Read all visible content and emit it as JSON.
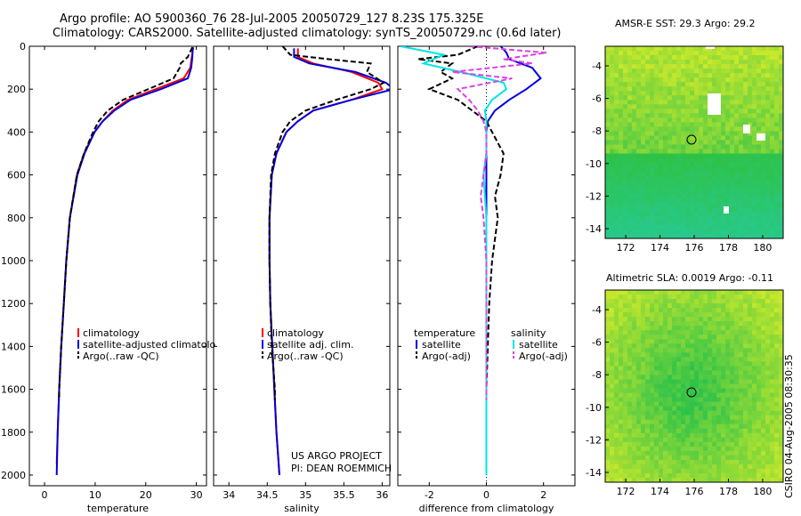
{
  "header": {
    "line1": "Argo profile: AO 5900360_76 28-Jul-2005 20050729_127 8.23S 175.325E",
    "line2": "Climatology: CARS2000. Satellite-adjusted climatology: synTS_20050729.nc (0.6d later)"
  },
  "credit": "CSIRO 04-Aug-2005 08:30:35",
  "maps": {
    "sst_title": "AMSR-E SST: 29.3 Argo: 29.2",
    "sla_title": "Altimetric SLA: 0.0019 Argo: -0.11",
    "x_ticks": [
      "172",
      "174",
      "176",
      "178",
      "180"
    ],
    "y_ticks": [
      "-4",
      "-6",
      "-8",
      "-10",
      "-12",
      "-14"
    ],
    "sst_y_ticks": [
      "-4",
      "-6",
      "-8",
      "-10",
      "-12",
      "-14"
    ],
    "colors": {
      "ocean_green": "#2ec24a",
      "warm": "#c8e82c",
      "cool": "#27c98e",
      "land": "#ffffff"
    }
  },
  "chart_data": [
    {
      "type": "line",
      "panel": "temperature",
      "xlabel": "temperature",
      "ylabel": "",
      "y_inverted": true,
      "xlim": [
        -3,
        32
      ],
      "ylim": [
        0,
        2050
      ],
      "x_ticks": [
        0,
        10,
        20,
        30
      ],
      "y_ticks": [
        0,
        200,
        400,
        600,
        800,
        1000,
        1200,
        1400,
        1600,
        1800,
        2000
      ],
      "legend": [
        "climatology",
        "satellite-adjusted climatolo",
        "Argo(..raw -QC)"
      ],
      "series": [
        {
          "name": "climatology",
          "color": "#ff0000",
          "dash": "",
          "depth": [
            5,
            50,
            100,
            150,
            200,
            250,
            300,
            350,
            400,
            500,
            600,
            800,
            1000,
            1200,
            1400,
            1600,
            1800,
            1950
          ],
          "values": [
            29.4,
            29.1,
            28.8,
            27.5,
            22,
            16.5,
            13.5,
            11.5,
            9.9,
            7.8,
            6.4,
            5.0,
            4.3,
            3.8,
            3.3,
            2.9,
            2.6,
            2.4
          ]
        },
        {
          "name": "satellite-adjusted climatolo",
          "color": "#0000dd",
          "dash": "",
          "depth": [
            5,
            50,
            100,
            150,
            200,
            250,
            300,
            350,
            400,
            500,
            600,
            800,
            1000,
            1200,
            1400,
            1600,
            1800,
            2000
          ],
          "values": [
            29.3,
            29.2,
            29.0,
            28.3,
            23,
            17,
            13.8,
            11.5,
            9.9,
            7.9,
            6.5,
            5.0,
            4.3,
            3.8,
            3.3,
            2.9,
            2.6,
            2.4
          ]
        },
        {
          "name": "Argo(..raw -QC)",
          "color": "#000000",
          "dash": "6,3",
          "depth": [
            5,
            50,
            80,
            100,
            150,
            200,
            250,
            300,
            350,
            400,
            500,
            600,
            800,
            1000,
            1200,
            1400,
            1600,
            1650
          ],
          "values": [
            29.2,
            28.3,
            26.9,
            26.7,
            25.5,
            20.5,
            15.5,
            12.5,
            10.7,
            9.6,
            7.8,
            6.4,
            5.0,
            4.3,
            3.8,
            3.3,
            2.9,
            2.9
          ]
        }
      ]
    },
    {
      "type": "line",
      "panel": "salinity",
      "xlabel": "salinity",
      "y_inverted": true,
      "xlim": [
        33.8,
        36.1
      ],
      "ylim": [
        0,
        2050
      ],
      "x_ticks": [
        34,
        34.5,
        35,
        35.5,
        36
      ],
      "legend": [
        "climatology",
        "satellite adj. clim.",
        "Argo(..raw -QC)"
      ],
      "annotation": [
        "US ARGO PROJECT",
        "PI: DEAN ROEMMICH"
      ],
      "series": [
        {
          "name": "climatology",
          "color": "#ff0000",
          "dash": "",
          "depth": [
            10,
            50,
            80,
            120,
            170,
            200,
            250,
            300,
            350,
            400,
            500,
            600,
            800,
            1000,
            1200,
            1500,
            1800,
            2000
          ],
          "values": [
            34.9,
            34.9,
            35.1,
            35.6,
            35.95,
            36.0,
            35.6,
            35.1,
            34.9,
            34.75,
            34.62,
            34.56,
            34.53,
            34.53,
            34.54,
            34.58,
            34.62,
            34.66
          ]
        },
        {
          "name": "satellite adj. clim.",
          "color": "#0000dd",
          "dash": "",
          "depth": [
            10,
            50,
            80,
            120,
            170,
            200,
            250,
            300,
            350,
            400,
            500,
            600,
            800,
            1000,
            1200,
            1500,
            1800,
            2000
          ],
          "values": [
            34.85,
            34.85,
            35.05,
            35.65,
            36.05,
            36.15,
            35.6,
            35.1,
            34.9,
            34.75,
            34.62,
            34.56,
            34.53,
            34.53,
            34.54,
            34.58,
            34.62,
            34.66
          ]
        },
        {
          "name": "Argo(..raw -QC)",
          "color": "#000000",
          "dash": "6,3",
          "depth": [
            0,
            40,
            60,
            80,
            120,
            170,
            200,
            250,
            300,
            350,
            400,
            500,
            600,
            800,
            1000,
            1200,
            1400,
            1600,
            1650
          ],
          "values": [
            34.7,
            34.8,
            35.3,
            35.85,
            35.8,
            36.02,
            35.85,
            35.4,
            35.0,
            34.8,
            34.7,
            34.6,
            34.55,
            34.53,
            34.53,
            34.54,
            34.56,
            34.6,
            34.6
          ]
        }
      ]
    },
    {
      "type": "line",
      "panel": "difference",
      "xlabel": "difference from climatology",
      "y_inverted": true,
      "xlim": [
        -3.1,
        3.1
      ],
      "ylim": [
        0,
        2050
      ],
      "x_ticks": [
        -2,
        0,
        2
      ],
      "legend": [
        "temperature",
        "satellite",
        "Argo(-adj)",
        "salinity",
        "satellite",
        "Argo(-adj)"
      ],
      "series": [
        {
          "name": "temperature satellite",
          "color": "#0000dd",
          "dash": "",
          "depth": [
            0,
            30,
            60,
            80,
            100,
            150,
            200,
            250,
            300,
            350,
            400,
            500,
            700,
            1000,
            1500,
            2000
          ],
          "values": [
            0.5,
            0.7,
            0.8,
            1.2,
            1.6,
            1.9,
            1.4,
            0.8,
            0.3,
            0.05,
            0,
            0,
            0,
            0,
            0,
            0
          ]
        },
        {
          "name": "temperature Argo(-adj)",
          "color": "#000000",
          "dash": "6,3",
          "depth": [
            0,
            40,
            60,
            80,
            120,
            150,
            200,
            250,
            300,
            350,
            400,
            450,
            500,
            600,
            700,
            800,
            1000,
            1200,
            1400,
            1600,
            1650
          ],
          "values": [
            -0.3,
            -1.0,
            -2.4,
            -1.2,
            -1.6,
            -1.2,
            -2.0,
            -1.0,
            -0.5,
            0.0,
            0.2,
            0.4,
            0.6,
            0.5,
            0.3,
            0.4,
            0.2,
            0.1,
            0.05,
            0.0,
            0.0
          ]
        },
        {
          "name": "salinity satellite",
          "color": "#00e5e5",
          "dash": "",
          "depth": [
            0,
            40,
            80,
            120,
            170,
            200,
            250,
            300,
            350,
            400,
            500,
            600,
            800,
            1000,
            1500,
            2000
          ],
          "values": [
            -3.0,
            -1.5,
            -2.2,
            -0.9,
            0.6,
            0.7,
            0.2,
            -0.05,
            0.0,
            0.0,
            0.0,
            -0.1,
            0.0,
            0.0,
            0.0,
            0.0
          ]
        },
        {
          "name": "salinity Argo(-adj)",
          "color": "#e040e0",
          "dash": "6,3",
          "depth": [
            0,
            30,
            60,
            80,
            120,
            150,
            200,
            250,
            300,
            350,
            400,
            500,
            600,
            700,
            800,
            1000,
            1200,
            1400,
            1600,
            1650
          ],
          "values": [
            -0.6,
            2.1,
            0.6,
            1.6,
            -1.2,
            0.9,
            -1.0,
            -0.6,
            -0.3,
            -0.1,
            0.0,
            0.0,
            -0.1,
            -0.2,
            -0.1,
            0.0,
            0.0,
            0.0,
            0.0,
            0.0
          ]
        }
      ]
    }
  ]
}
